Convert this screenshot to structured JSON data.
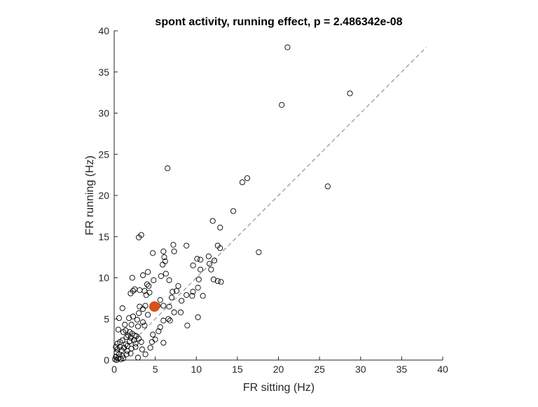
{
  "chart_data": {
    "type": "scatter",
    "title": "spont activity, running effect, p = 2.486342e-08",
    "xlabel": "FR sitting (Hz)",
    "ylabel": "FR running (Hz)",
    "xlim": [
      0,
      40
    ],
    "ylim": [
      0,
      40
    ],
    "xticks": [
      "0",
      "5",
      "10",
      "15",
      "20",
      "25",
      "30",
      "35",
      "40"
    ],
    "yticks": [
      "0",
      "5",
      "10",
      "15",
      "20",
      "25",
      "30",
      "35",
      "40"
    ],
    "reference_line": {
      "style": "dashed",
      "color": "#808080",
      "from": [
        0,
        0
      ],
      "to": [
        38,
        38
      ]
    },
    "marker_color": "#000000",
    "highlight_color": "#D95319",
    "highlight": {
      "x": 4.9,
      "y": 6.5
    },
    "points": [
      [
        21.1,
        38.0
      ],
      [
        28.7,
        32.4
      ],
      [
        20.4,
        31.0
      ],
      [
        6.5,
        23.3
      ],
      [
        26.0,
        21.1
      ],
      [
        16.2,
        22.1
      ],
      [
        15.6,
        21.6
      ],
      [
        14.5,
        18.1
      ],
      [
        12.0,
        16.9
      ],
      [
        17.6,
        13.1
      ],
      [
        12.9,
        16.1
      ],
      [
        12.6,
        13.9
      ],
      [
        12.9,
        13.6
      ],
      [
        11.5,
        12.6
      ],
      [
        12.2,
        12.1
      ],
      [
        11.8,
        11.0
      ],
      [
        11.6,
        11.7
      ],
      [
        12.1,
        9.8
      ],
      [
        12.6,
        9.6
      ],
      [
        13.0,
        9.5
      ],
      [
        10.1,
        12.3
      ],
      [
        10.5,
        12.2
      ],
      [
        10.5,
        11.0
      ],
      [
        9.6,
        11.5
      ],
      [
        10.3,
        9.8
      ],
      [
        10.8,
        7.8
      ],
      [
        10.2,
        8.8
      ],
      [
        9.6,
        8.3
      ],
      [
        9.5,
        7.8
      ],
      [
        8.8,
        7.9
      ],
      [
        10.2,
        5.2
      ],
      [
        8.9,
        4.2
      ],
      [
        8.8,
        13.9
      ],
      [
        7.2,
        14.0
      ],
      [
        7.3,
        13.2
      ],
      [
        6.0,
        13.2
      ],
      [
        6.1,
        12.5
      ],
      [
        6.2,
        12.0
      ],
      [
        5.9,
        11.6
      ],
      [
        6.3,
        10.5
      ],
      [
        5.7,
        10.2
      ],
      [
        4.7,
        13.0
      ],
      [
        3.3,
        15.2
      ],
      [
        3.0,
        14.9
      ],
      [
        4.1,
        10.7
      ],
      [
        4.8,
        9.7
      ],
      [
        3.5,
        10.3
      ],
      [
        4.0,
        9.2
      ],
      [
        2.2,
        10.0
      ],
      [
        2.5,
        8.6
      ],
      [
        2.3,
        8.4
      ],
      [
        2.0,
        8.1
      ],
      [
        3.1,
        8.5
      ],
      [
        3.7,
        8.4
      ],
      [
        3.9,
        7.9
      ],
      [
        4.3,
        8.2
      ],
      [
        4.2,
        9.0
      ],
      [
        6.7,
        9.7
      ],
      [
        7.1,
        8.3
      ],
      [
        7.6,
        8.4
      ],
      [
        7.8,
        9.0
      ],
      [
        7.0,
        7.6
      ],
      [
        8.2,
        7.2
      ],
      [
        5.6,
        7.3
      ],
      [
        6.0,
        6.6
      ],
      [
        6.7,
        6.5
      ],
      [
        5.3,
        6.6
      ],
      [
        7.3,
        5.8
      ],
      [
        8.1,
        5.8
      ],
      [
        6.6,
        5.0
      ],
      [
        6.8,
        4.8
      ],
      [
        6.0,
        4.8
      ],
      [
        5.6,
        4.0
      ],
      [
        5.4,
        3.5
      ],
      [
        6.0,
        2.1
      ],
      [
        5.0,
        2.5
      ],
      [
        4.7,
        3.1
      ],
      [
        4.6,
        2.2
      ],
      [
        4.4,
        1.5
      ],
      [
        3.8,
        0.7
      ],
      [
        3.1,
        6.5
      ],
      [
        3.5,
        6.2
      ],
      [
        3.8,
        6.6
      ],
      [
        3.0,
        5.7
      ],
      [
        4.1,
        5.5
      ],
      [
        2.8,
        4.9
      ],
      [
        2.3,
        5.3
      ],
      [
        1.8,
        5.1
      ],
      [
        3.5,
        4.6
      ],
      [
        3.7,
        4.2
      ],
      [
        2.9,
        4.1
      ],
      [
        2.1,
        4.3
      ],
      [
        1.3,
        4.3
      ],
      [
        0.6,
        5.1
      ],
      [
        1.0,
        6.3
      ],
      [
        0.5,
        3.7
      ],
      [
        1.1,
        3.4
      ],
      [
        1.4,
        3.6
      ],
      [
        1.7,
        3.0
      ],
      [
        2.2,
        3.2
      ],
      [
        2.5,
        3.0
      ],
      [
        2.0,
        2.7
      ],
      [
        2.7,
        2.9
      ],
      [
        3.0,
        2.6
      ],
      [
        2.4,
        2.4
      ],
      [
        1.9,
        2.3
      ],
      [
        2.6,
        2.0
      ],
      [
        3.3,
        2.2
      ],
      [
        1.4,
        1.9
      ],
      [
        1.0,
        2.4
      ],
      [
        0.7,
        2.2
      ],
      [
        1.2,
        1.5
      ],
      [
        0.9,
        1.2
      ],
      [
        1.6,
        1.1
      ],
      [
        2.1,
        1.4
      ],
      [
        2.6,
        1.6
      ],
      [
        3.4,
        1.3
      ],
      [
        0.4,
        1.3
      ],
      [
        0.3,
        0.9
      ],
      [
        0.6,
        0.7
      ],
      [
        1.0,
        0.5
      ],
      [
        1.5,
        0.7
      ],
      [
        2.0,
        0.8
      ],
      [
        0.2,
        0.4
      ],
      [
        0.5,
        0.2
      ],
      [
        0.8,
        0.1
      ],
      [
        0.1,
        0.1
      ],
      [
        0.3,
        0.0
      ],
      [
        1.1,
        0.2
      ],
      [
        2.9,
        0.3
      ],
      [
        0.4,
        2.0
      ],
      [
        0.7,
        1.6
      ],
      [
        0.2,
        1.6
      ],
      [
        1.5,
        2.8
      ],
      [
        1.9,
        3.4
      ],
      [
        1.6,
        1.7
      ]
    ]
  }
}
